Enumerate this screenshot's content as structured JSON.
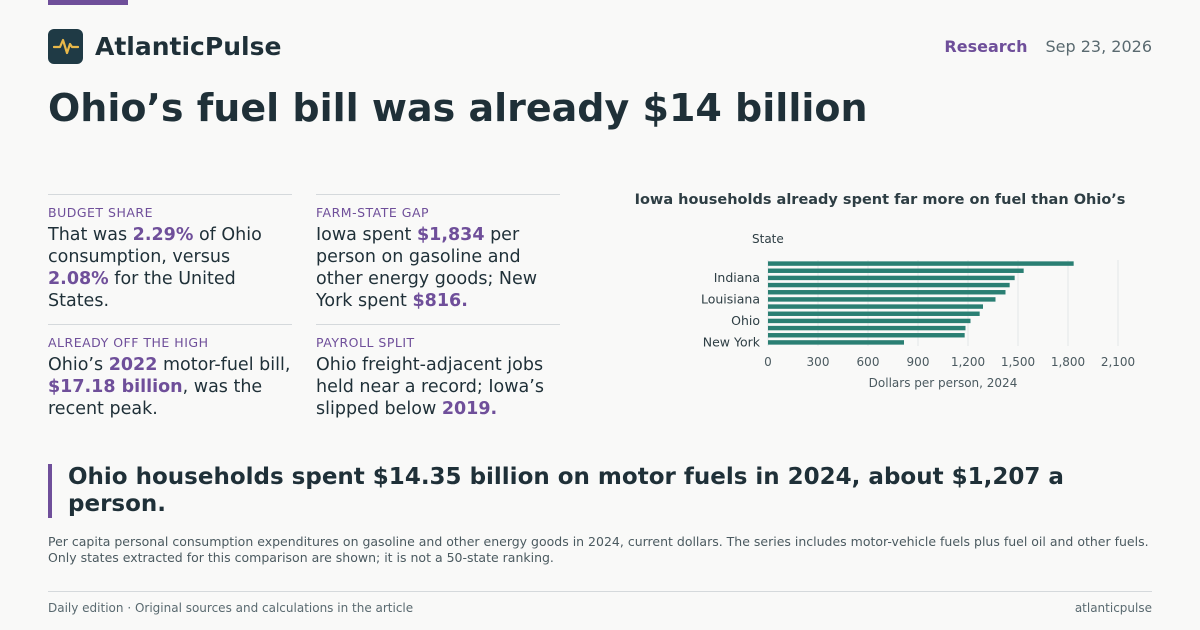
{
  "brand": {
    "name": "AtlanticPulse",
    "logo_icon": "pulse-icon"
  },
  "header": {
    "section": "Research",
    "date": "Sep 23, 2026"
  },
  "headline": "Ohio’s fuel bill was already $14 billion",
  "stats": [
    {
      "label": "BUDGET SHARE",
      "parts": [
        {
          "t": "That was "
        },
        {
          "t": "2.29%",
          "b": true
        },
        {
          "t": " of Ohio consumption, versus "
        },
        {
          "t": "2.08%",
          "b": true
        },
        {
          "t": " for the United States."
        }
      ]
    },
    {
      "label": "FARM-STATE GAP",
      "parts": [
        {
          "t": "Iowa spent "
        },
        {
          "t": "$1,834",
          "b": true
        },
        {
          "t": " per person on gasoline and other energy goods; New York spent "
        },
        {
          "t": "$816.",
          "b": true
        }
      ]
    },
    {
      "label": "ALREADY OFF THE HIGH",
      "parts": [
        {
          "t": "Ohio’s "
        },
        {
          "t": "2022",
          "b": true
        },
        {
          "t": " motor-fuel bill, "
        },
        {
          "t": "$17.18 billion",
          "b": true
        },
        {
          "t": ", was the recent peak."
        }
      ]
    },
    {
      "label": "PAYROLL SPLIT",
      "parts": [
        {
          "t": "Ohio freight-adjacent jobs held near a record; Iowa’s slipped below "
        },
        {
          "t": "2019.",
          "b": true
        }
      ]
    }
  ],
  "chart_data": {
    "type": "bar",
    "orientation": "horizontal",
    "title": "Iowa households already spent far more on fuel than Ohio’s",
    "ylabel": "State",
    "xlabel": "Dollars per person, 2024",
    "visible_category_labels": [
      "Indiana",
      "Louisiana",
      "Ohio",
      "New York"
    ],
    "labeled_bar_index": [
      2,
      5,
      8,
      11
    ],
    "values": [
      1834,
      1534,
      1480,
      1450,
      1425,
      1365,
      1290,
      1270,
      1215,
      1185,
      1180,
      816
    ],
    "xticks": [
      0,
      300,
      600,
      900,
      1200,
      1500,
      1800,
      2100
    ],
    "xtick_labels": [
      "0",
      "300",
      "600",
      "900",
      "1,200",
      "1,500",
      "1,800",
      "2,100"
    ],
    "xlim": [
      0,
      2100
    ],
    "grid": true,
    "bar_color": "#2a7f73"
  },
  "quote": "Ohio households spent $14.35 billion on motor fuels in 2024, about $1,207 a person.",
  "note": "Per capita personal consumption expenditures on gasoline and other energy goods in 2024, current dollars. The series includes motor-vehicle fuels plus fuel oil and other fuels. Only states extracted for this comparison are shown; it is not a 50-state ranking.",
  "footer": {
    "left": "Daily edition · Original sources and calculations in the article",
    "right": "atlanticpulse"
  }
}
